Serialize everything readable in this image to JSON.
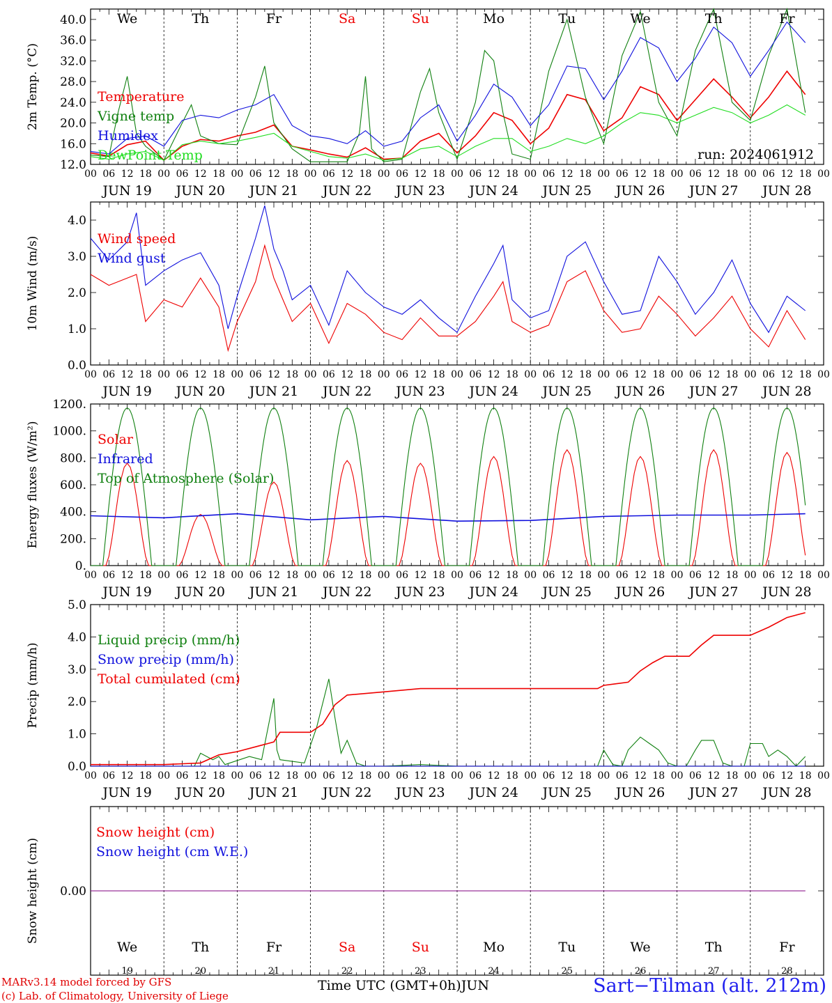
{
  "meta": {
    "run_label": "run: 2024061912",
    "x_axis_label": "Time UTC (GMT+0h)",
    "month_label": "JUN",
    "credit_line1": "MARv3.14 model forced by GFS",
    "credit_line2": "(c) Lab. of Climatology, University of Liege",
    "station": "Sart−Tilman (alt. 212m)"
  },
  "days": [
    {
      "weekday": "We",
      "date": "JUN 19",
      "num": "19",
      "weekend": false
    },
    {
      "weekday": "Th",
      "date": "JUN 20",
      "num": "20",
      "weekend": false
    },
    {
      "weekday": "Fr",
      "date": "JUN 21",
      "num": "21",
      "weekend": false
    },
    {
      "weekday": "Sa",
      "date": "JUN 22",
      "num": "22",
      "weekend": true
    },
    {
      "weekday": "Su",
      "date": "JUN 23",
      "num": "23",
      "weekend": true
    },
    {
      "weekday": "Mo",
      "date": "JUN 24",
      "num": "24",
      "weekend": false
    },
    {
      "weekday": "Tu",
      "date": "JUN 25",
      "num": "25",
      "weekend": false
    },
    {
      "weekday": "We",
      "date": "JUN 26",
      "num": "26",
      "weekend": false
    },
    {
      "weekday": "Th",
      "date": "JUN 27",
      "num": "27",
      "weekend": false
    },
    {
      "weekday": "Fr",
      "date": "JUN 28",
      "num": "28",
      "weekend": false
    }
  ],
  "hour_ticks": [
    "00",
    "06",
    "12",
    "18"
  ],
  "colors": {
    "red": "#ee0000",
    "green": "#108010",
    "blue": "#1010dd",
    "light_green": "#20dd20",
    "purple": "#800080",
    "weekend": "#ee0000",
    "station": "#2020ee"
  },
  "chart_data": [
    {
      "type": "line",
      "id": "temp",
      "ylabel": "2m Temp. (°C)",
      "ylim": [
        12,
        42
      ],
      "yticks": [
        "12.0",
        "16.0",
        "20.0",
        "24.0",
        "28.0",
        "32.0",
        "36.0",
        "40.0"
      ],
      "x_unit": "hours since 2024-06-19 00 UTC",
      "series": [
        {
          "name": "Temperature",
          "color": "red",
          "x": [
            0,
            6,
            12,
            18,
            24,
            30,
            36,
            42,
            48,
            54,
            60,
            66,
            72,
            78,
            84,
            90,
            96,
            102,
            108,
            114,
            120,
            126,
            132,
            138,
            144,
            150,
            156,
            162,
            168,
            174,
            180,
            186,
            192,
            198,
            204,
            210,
            216,
            222,
            228,
            234
          ],
          "y": [
            14.2,
            13.6,
            15.8,
            16.5,
            12.8,
            15.5,
            16.8,
            16.5,
            17.5,
            18.2,
            19.6,
            15.5,
            14.8,
            14.0,
            13.4,
            15.2,
            13.0,
            13.2,
            16.5,
            18.0,
            14.2,
            17.5,
            22.0,
            20.5,
            16.0,
            19.0,
            25.5,
            24.5,
            18.5,
            21.0,
            27.0,
            25.5,
            20.5,
            24.5,
            28.5,
            25.0,
            21.0,
            25.0,
            30.0,
            25.5
          ]
        },
        {
          "name": "Vigne temp",
          "color": "green",
          "x": [
            0,
            6,
            9,
            12,
            15,
            18,
            24,
            30,
            33,
            36,
            42,
            48,
            54,
            57,
            60,
            63,
            66,
            72,
            78,
            84,
            88,
            90,
            92,
            96,
            102,
            108,
            111,
            114,
            120,
            126,
            129,
            132,
            135,
            138,
            144,
            150,
            156,
            162,
            168,
            174,
            180,
            186,
            192,
            198,
            204,
            210,
            216,
            222,
            228,
            234
          ],
          "y": [
            13.8,
            13.5,
            22.0,
            29.0,
            18.0,
            15.5,
            12.8,
            20.0,
            23.5,
            17.5,
            16.0,
            15.8,
            25.0,
            31.0,
            20.0,
            17.5,
            15.0,
            12.5,
            12.5,
            12.5,
            18.0,
            29.0,
            15.0,
            12.5,
            13.0,
            26.0,
            30.5,
            22.0,
            13.0,
            24.0,
            34.0,
            32.0,
            22.0,
            14.0,
            13.0,
            30.0,
            40.0,
            25.0,
            16.0,
            33.0,
            41.5,
            24.0,
            17.5,
            34.0,
            42.0,
            24.0,
            20.5,
            33.0,
            43.0,
            22.0
          ]
        },
        {
          "name": "Humidex",
          "color": "blue",
          "x": [
            0,
            6,
            12,
            18,
            24,
            30,
            36,
            42,
            48,
            54,
            60,
            66,
            72,
            78,
            84,
            90,
            96,
            102,
            108,
            114,
            120,
            126,
            132,
            138,
            144,
            150,
            156,
            162,
            168,
            174,
            180,
            186,
            192,
            198,
            204,
            210,
            216,
            222,
            228,
            234
          ],
          "y": [
            14.5,
            14.0,
            17.0,
            17.5,
            15.5,
            20.5,
            21.5,
            21.0,
            22.5,
            23.5,
            25.5,
            19.5,
            17.5,
            17.0,
            16.0,
            18.5,
            15.5,
            16.5,
            21.0,
            23.5,
            16.5,
            21.5,
            27.5,
            25.0,
            19.5,
            23.5,
            31.0,
            30.5,
            24.5,
            30.0,
            36.5,
            34.5,
            28.0,
            32.5,
            38.5,
            35.5,
            29.0,
            34.0,
            39.5,
            35.5
          ]
        },
        {
          "name": "DewPoint Temp",
          "color": "light_green",
          "x": [
            0,
            6,
            12,
            18,
            24,
            30,
            36,
            42,
            48,
            54,
            60,
            66,
            72,
            78,
            84,
            90,
            96,
            102,
            108,
            114,
            120,
            126,
            132,
            138,
            144,
            150,
            156,
            162,
            168,
            174,
            180,
            186,
            192,
            198,
            204,
            210,
            216,
            222,
            228,
            234
          ],
          "y": [
            13.5,
            13.0,
            14.0,
            14.5,
            12.8,
            15.8,
            16.5,
            16.0,
            16.5,
            17.2,
            18.0,
            15.5,
            14.5,
            13.5,
            13.2,
            14.0,
            12.8,
            13.2,
            15.0,
            15.5,
            13.5,
            15.5,
            17.0,
            17.0,
            14.5,
            15.5,
            17.0,
            16.0,
            17.5,
            20.0,
            22.0,
            21.5,
            20.0,
            21.5,
            23.0,
            22.0,
            20.0,
            21.5,
            23.5,
            21.5
          ]
        }
      ]
    },
    {
      "type": "line",
      "id": "wind",
      "ylabel": "10m Wind (m/s)",
      "ylim": [
        0,
        4.5
      ],
      "yticks": [
        "0.0",
        "1.0",
        "2.0",
        "3.0",
        "4.0"
      ],
      "x_unit": "hours since 2024-06-19 00 UTC",
      "series": [
        {
          "name": "Wind speed",
          "color": "red",
          "x": [
            0,
            6,
            12,
            15,
            18,
            24,
            30,
            36,
            42,
            45,
            48,
            54,
            57,
            60,
            63,
            66,
            72,
            78,
            84,
            90,
            96,
            102,
            108,
            114,
            120,
            126,
            132,
            135,
            138,
            144,
            150,
            156,
            162,
            168,
            174,
            180,
            186,
            192,
            198,
            204,
            210,
            216,
            222,
            228,
            234
          ],
          "y": [
            2.5,
            2.2,
            2.4,
            2.5,
            1.2,
            1.8,
            1.6,
            2.4,
            1.6,
            0.4,
            1.2,
            2.3,
            3.3,
            2.4,
            1.8,
            1.2,
            1.7,
            0.6,
            1.7,
            1.4,
            0.9,
            0.7,
            1.3,
            0.8,
            0.8,
            1.2,
            1.9,
            2.3,
            1.2,
            0.9,
            1.1,
            2.3,
            2.6,
            1.5,
            0.9,
            1.0,
            1.9,
            1.4,
            0.8,
            1.3,
            1.9,
            1.0,
            0.5,
            1.5,
            0.7
          ]
        },
        {
          "name": "Wind gust",
          "color": "blue",
          "x": [
            0,
            6,
            12,
            15,
            18,
            24,
            30,
            36,
            42,
            45,
            48,
            54,
            57,
            60,
            63,
            66,
            72,
            78,
            84,
            90,
            96,
            102,
            108,
            114,
            120,
            126,
            132,
            135,
            138,
            144,
            150,
            156,
            162,
            168,
            174,
            180,
            186,
            192,
            198,
            204,
            210,
            216,
            222,
            228,
            234
          ],
          "y": [
            3.5,
            2.9,
            3.4,
            4.2,
            2.2,
            2.6,
            2.9,
            3.1,
            2.2,
            1.0,
            1.9,
            3.5,
            4.4,
            3.2,
            2.6,
            1.8,
            2.2,
            1.1,
            2.6,
            2.0,
            1.6,
            1.4,
            1.8,
            1.3,
            0.9,
            1.9,
            2.8,
            3.3,
            1.8,
            1.3,
            1.5,
            3.0,
            3.4,
            2.3,
            1.4,
            1.5,
            3.0,
            2.3,
            1.4,
            2.0,
            2.9,
            1.7,
            0.9,
            1.9,
            1.5
          ]
        }
      ]
    },
    {
      "type": "line",
      "id": "energy",
      "ylabel": "Energy fluxes (W/m²)",
      "ylim": [
        0,
        1200
      ],
      "yticks": [
        "0.",
        "200.",
        "400.",
        "600.",
        "800.",
        "1000.",
        "1200."
      ],
      "x_unit": "hours since 2024-06-19 00 UTC",
      "series": [
        {
          "name": "Solar",
          "color": "red",
          "peaks": [
            760,
            380,
            620,
            780,
            760,
            810,
            860,
            810,
            860,
            840
          ]
        },
        {
          "name": "Infrared",
          "color": "blue",
          "x": [
            0,
            24,
            48,
            72,
            96,
            120,
            144,
            168,
            192,
            216,
            234
          ],
          "y": [
            370,
            355,
            385,
            340,
            365,
            330,
            335,
            365,
            375,
            375,
            385
          ]
        },
        {
          "name": "Top of Atmosphere (Solar)",
          "color": "green",
          "peak": 1170,
          "sunrise_hour": 4,
          "sunset_hour": 20
        }
      ]
    },
    {
      "type": "line",
      "id": "precip",
      "ylabel": "Precip (mm/h)",
      "ylim": [
        0,
        5
      ],
      "yticks": [
        "0.0",
        "1.0",
        "2.0",
        "3.0",
        "4.0",
        "5.0"
      ],
      "x_unit": "hours since 2024-06-19 00 UTC",
      "series": [
        {
          "name": "Liquid precip (mm/h)",
          "color": "green",
          "x": [
            0,
            34,
            36,
            40,
            42,
            44,
            52,
            56,
            60,
            61,
            62,
            70,
            74,
            78,
            80,
            82,
            84,
            87,
            90,
            96,
            108,
            120,
            166,
            168,
            171,
            174,
            176,
            180,
            183,
            186,
            189,
            192,
            195,
            198,
            200,
            204,
            207,
            210,
            214,
            216,
            220,
            222,
            225,
            228,
            231,
            234
          ],
          "y": [
            0,
            0,
            0.4,
            0.2,
            0.3,
            0.05,
            0.3,
            0.2,
            2.1,
            0.5,
            0.2,
            0.1,
            1.2,
            2.7,
            1.5,
            0.4,
            0.8,
            0.1,
            0,
            0,
            0.05,
            0,
            0,
            0.5,
            0.05,
            0,
            0.5,
            0.9,
            0.7,
            0.5,
            0.1,
            0,
            0,
            0.5,
            0.8,
            0.8,
            0.1,
            0,
            0,
            0.7,
            0.7,
            0.3,
            0.5,
            0.3,
            0,
            0.3
          ]
        },
        {
          "name": "Snow precip (mm/h)",
          "color": "blue",
          "x": [
            0,
            234
          ],
          "y": [
            0,
            0
          ]
        },
        {
          "name": "Total cumulated (cm)",
          "color": "red",
          "x": [
            0,
            24,
            36,
            42,
            48,
            54,
            60,
            62,
            72,
            76,
            80,
            84,
            96,
            108,
            120,
            166,
            168,
            172,
            176,
            180,
            184,
            188,
            192,
            196,
            200,
            204,
            208,
            216,
            222,
            228,
            234
          ],
          "y": [
            0.05,
            0.05,
            0.1,
            0.35,
            0.45,
            0.6,
            0.75,
            1.05,
            1.05,
            1.3,
            1.9,
            2.2,
            2.3,
            2.4,
            2.4,
            2.4,
            2.5,
            2.55,
            2.6,
            2.95,
            3.2,
            3.4,
            3.4,
            3.4,
            3.75,
            4.05,
            4.05,
            4.05,
            4.3,
            4.6,
            4.75
          ]
        }
      ]
    },
    {
      "type": "line",
      "id": "snow",
      "ylabel": "Snow height (cm)",
      "ylim": [
        -1,
        1
      ],
      "yticks": [
        "0.00"
      ],
      "x_unit": "hours since 2024-06-19 00 UTC",
      "series": [
        {
          "name": "Snow height (cm)",
          "color": "red",
          "x": [
            0,
            234
          ],
          "y": [
            0,
            0
          ]
        },
        {
          "name": "Snow height (cm W.E.)",
          "color": "blue",
          "x": [
            0,
            234
          ],
          "y": [
            0,
            0
          ]
        }
      ]
    }
  ]
}
